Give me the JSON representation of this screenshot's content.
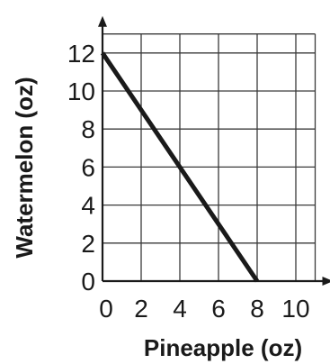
{
  "chart_data": {
    "type": "line",
    "title": "",
    "xlabel": "Pineapple (oz)",
    "ylabel": "Watermelon (oz)",
    "xlim": [
      0,
      11
    ],
    "ylim": [
      0,
      13
    ],
    "x_ticks": [
      0,
      2,
      4,
      6,
      8,
      10
    ],
    "y_ticks": [
      0,
      2,
      4,
      6,
      8,
      10,
      12
    ],
    "x_tick_labels": [
      "0",
      "2",
      "4",
      "6",
      "8",
      "10"
    ],
    "y_tick_labels": [
      "0",
      "2",
      "4",
      "6",
      "8",
      "10",
      "12"
    ],
    "grid": true,
    "series": [
      {
        "x": [
          0,
          8
        ],
        "y": [
          12,
          0
        ],
        "color": "#1a1a1a"
      }
    ]
  }
}
